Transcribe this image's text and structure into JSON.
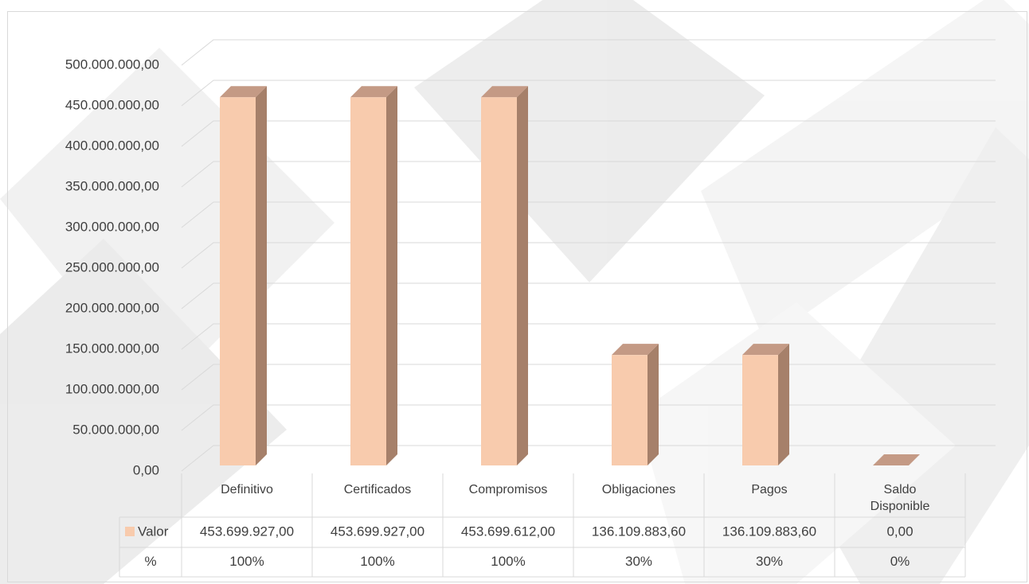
{
  "chart_data": {
    "type": "bar3d",
    "categories": [
      "Definitivo",
      "Certificados",
      "Compromisos",
      "Obligaciones",
      "Pagos",
      "Saldo Disponible"
    ],
    "series": [
      {
        "name": "Valor",
        "color": "#f8cbad",
        "values": [
          453699927,
          453699927,
          453699612,
          136109883.6,
          136109883.6,
          0
        ],
        "value_labels": [
          "453.699.927,00",
          "453.699.927,00",
          "453.699.612,00",
          "136.109.883,60",
          "136.109.883,60",
          "0,00"
        ]
      }
    ],
    "percent": {
      "name": "%",
      "values": [
        100,
        100,
        100,
        30,
        30,
        0
      ],
      "value_labels": [
        "100%",
        "100%",
        "100%",
        "30%",
        "30%",
        "0%"
      ]
    },
    "ylim": [
      0,
      500000000
    ],
    "yticks": [
      {
        "value": 0,
        "label": "0,00"
      },
      {
        "value": 50000000,
        "label": "50.000.000,00"
      },
      {
        "value": 100000000,
        "label": "100.000.000,00"
      },
      {
        "value": 150000000,
        "label": "150.000.000,00"
      },
      {
        "value": 200000000,
        "label": "200.000.000,00"
      },
      {
        "value": 250000000,
        "label": "250.000.000,00"
      },
      {
        "value": 300000000,
        "label": "300.000.000,00"
      },
      {
        "value": 350000000,
        "label": "350.000.000,00"
      },
      {
        "value": 400000000,
        "label": "400.000.000,00"
      },
      {
        "value": 450000000,
        "label": "450.000.000,00"
      },
      {
        "value": 500000000,
        "label": "500.000.000,00"
      }
    ],
    "grid": true
  }
}
